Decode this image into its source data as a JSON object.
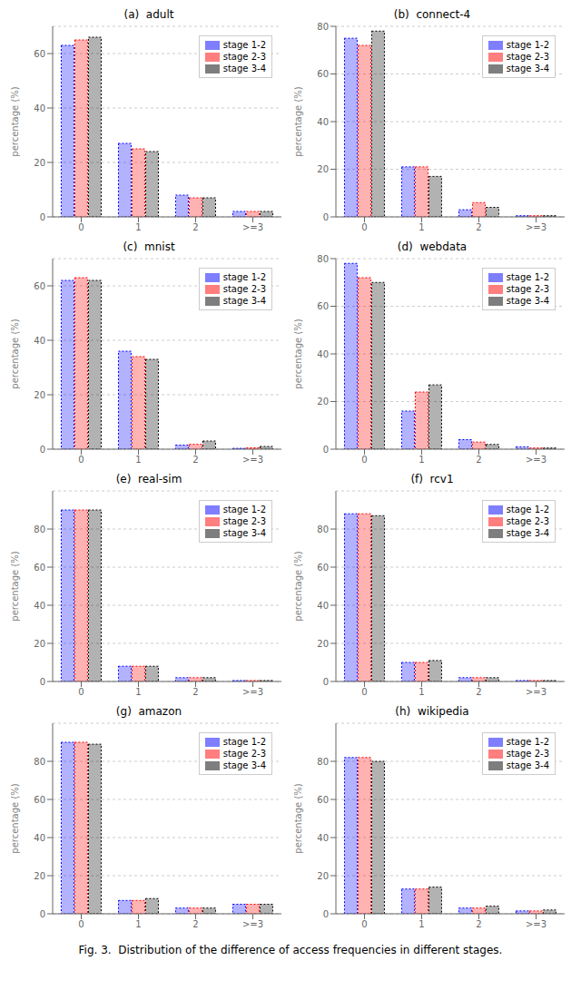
{
  "caption": "Fig. 3.  Distribution of the difference of access frequencies in different stages.",
  "chart_data": [
    {
      "type": "bar",
      "title": "(a)  adult",
      "categories": [
        "0",
        "1",
        "2",
        ">=3"
      ],
      "y_label": "percentage (%)",
      "ylim": [
        0,
        70
      ],
      "yticks": [
        0,
        20,
        40,
        60
      ],
      "legend": "upper right",
      "series": [
        {
          "name": "stage 1-2",
          "color": "blue",
          "values": [
            63,
            27,
            8,
            2
          ]
        },
        {
          "name": "stage 2-3",
          "color": "red",
          "values": [
            65,
            25,
            7,
            2
          ]
        },
        {
          "name": "stage 3-4",
          "color": "black",
          "values": [
            66,
            24,
            7,
            2
          ]
        }
      ]
    },
    {
      "type": "bar",
      "title": "(b)  connect-4",
      "categories": [
        "0",
        "1",
        "2",
        ">=3"
      ],
      "y_label": "percentage (%)",
      "ylim": [
        0,
        80
      ],
      "yticks": [
        0,
        20,
        40,
        60,
        80
      ],
      "legend": "upper right",
      "series": [
        {
          "name": "stage 1-2",
          "color": "blue",
          "values": [
            75,
            21,
            3,
            0.5
          ]
        },
        {
          "name": "stage 2-3",
          "color": "red",
          "values": [
            72,
            21,
            6,
            0.5
          ]
        },
        {
          "name": "stage 3-4",
          "color": "black",
          "values": [
            78,
            17,
            4,
            0.5
          ]
        }
      ]
    },
    {
      "type": "bar",
      "title": "(c)  mnist",
      "categories": [
        "0",
        "1",
        "2",
        ">=3"
      ],
      "y_label": "percentage (%)",
      "ylim": [
        0,
        70
      ],
      "yticks": [
        0,
        20,
        40,
        60
      ],
      "legend": "upper right",
      "series": [
        {
          "name": "stage 1-2",
          "color": "blue",
          "values": [
            62,
            36,
            1.5,
            0.3
          ]
        },
        {
          "name": "stage 2-3",
          "color": "red",
          "values": [
            63,
            34,
            1.8,
            0.5
          ]
        },
        {
          "name": "stage 3-4",
          "color": "black",
          "values": [
            62,
            33,
            3,
            1
          ]
        }
      ]
    },
    {
      "type": "bar",
      "title": "(d)  webdata",
      "categories": [
        "0",
        "1",
        "2",
        ">=3"
      ],
      "y_label": "percentage (%)",
      "ylim": [
        0,
        80
      ],
      "yticks": [
        0,
        20,
        40,
        60,
        80
      ],
      "legend": "upper right",
      "series": [
        {
          "name": "stage 1-2",
          "color": "blue",
          "values": [
            78,
            16,
            4,
            1
          ]
        },
        {
          "name": "stage 2-3",
          "color": "red",
          "values": [
            72,
            24,
            3,
            0.5
          ]
        },
        {
          "name": "stage 3-4",
          "color": "black",
          "values": [
            70,
            27,
            2,
            0.5
          ]
        }
      ]
    },
    {
      "type": "bar",
      "title": "(e)  real-sim",
      "categories": [
        "0",
        "1",
        "2",
        ">=3"
      ],
      "y_label": "percentage (%)",
      "ylim": [
        0,
        100
      ],
      "yticks": [
        0,
        20,
        40,
        60,
        80
      ],
      "legend": "upper right",
      "series": [
        {
          "name": "stage 1-2",
          "color": "blue",
          "values": [
            90,
            8,
            2,
            0.5
          ]
        },
        {
          "name": "stage 2-3",
          "color": "red",
          "values": [
            90,
            8,
            2,
            0.5
          ]
        },
        {
          "name": "stage 3-4",
          "color": "black",
          "values": [
            90,
            8,
            2,
            0.5
          ]
        }
      ]
    },
    {
      "type": "bar",
      "title": "(f)  rcv1",
      "categories": [
        "0",
        "1",
        "2",
        ">=3"
      ],
      "y_label": "percentage (%)",
      "ylim": [
        0,
        100
      ],
      "yticks": [
        0,
        20,
        40,
        60,
        80
      ],
      "legend": "upper right",
      "series": [
        {
          "name": "stage 1-2",
          "color": "blue",
          "values": [
            88,
            10,
            2,
            0.5
          ]
        },
        {
          "name": "stage 2-3",
          "color": "red",
          "values": [
            88,
            10,
            2,
            0.5
          ]
        },
        {
          "name": "stage 3-4",
          "color": "black",
          "values": [
            87,
            11,
            2,
            0.5
          ]
        }
      ]
    },
    {
      "type": "bar",
      "title": "(g)  amazon",
      "categories": [
        "0",
        "1",
        "2",
        ">=3"
      ],
      "y_label": "percentage (%)",
      "ylim": [
        0,
        100
      ],
      "yticks": [
        0,
        20,
        40,
        60,
        80
      ],
      "legend": "upper right",
      "series": [
        {
          "name": "stage 1-2",
          "color": "blue",
          "values": [
            90,
            7,
            3,
            5
          ]
        },
        {
          "name": "stage 2-3",
          "color": "red",
          "values": [
            90,
            7,
            3,
            5
          ]
        },
        {
          "name": "stage 3-4",
          "color": "black",
          "values": [
            89,
            8,
            3,
            5
          ]
        }
      ]
    },
    {
      "type": "bar",
      "title": "(h)  wikipedia",
      "categories": [
        "0",
        "1",
        "2",
        ">=3"
      ],
      "y_label": "percentage (%)",
      "ylim": [
        0,
        100
      ],
      "yticks": [
        0,
        20,
        40,
        60,
        80
      ],
      "legend": "upper right",
      "series": [
        {
          "name": "stage 1-2",
          "color": "blue",
          "values": [
            82,
            13,
            3,
            1.5
          ]
        },
        {
          "name": "stage 2-3",
          "color": "red",
          "values": [
            82,
            13,
            3,
            1.5
          ]
        },
        {
          "name": "stage 3-4",
          "color": "black",
          "values": [
            80,
            14,
            4,
            2
          ]
        }
      ]
    }
  ]
}
